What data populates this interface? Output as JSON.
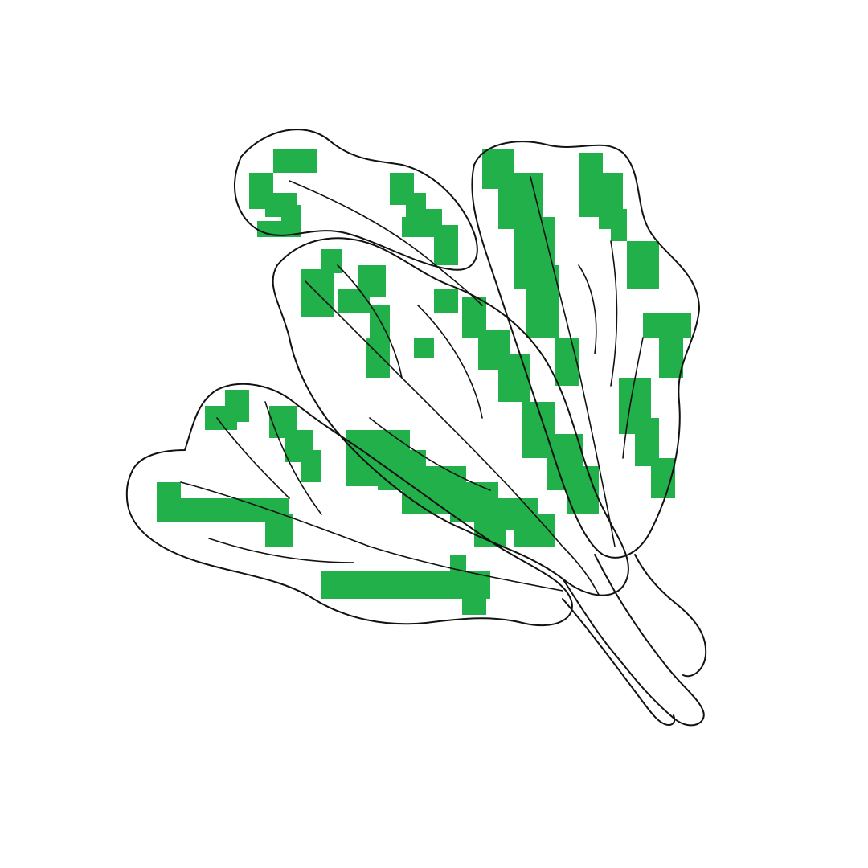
{
  "illustration": {
    "subject": "leafy-greens-icon",
    "colors": {
      "background": "#ffffff",
      "outline": "#111111",
      "fill": "#22b04b"
    }
  }
}
